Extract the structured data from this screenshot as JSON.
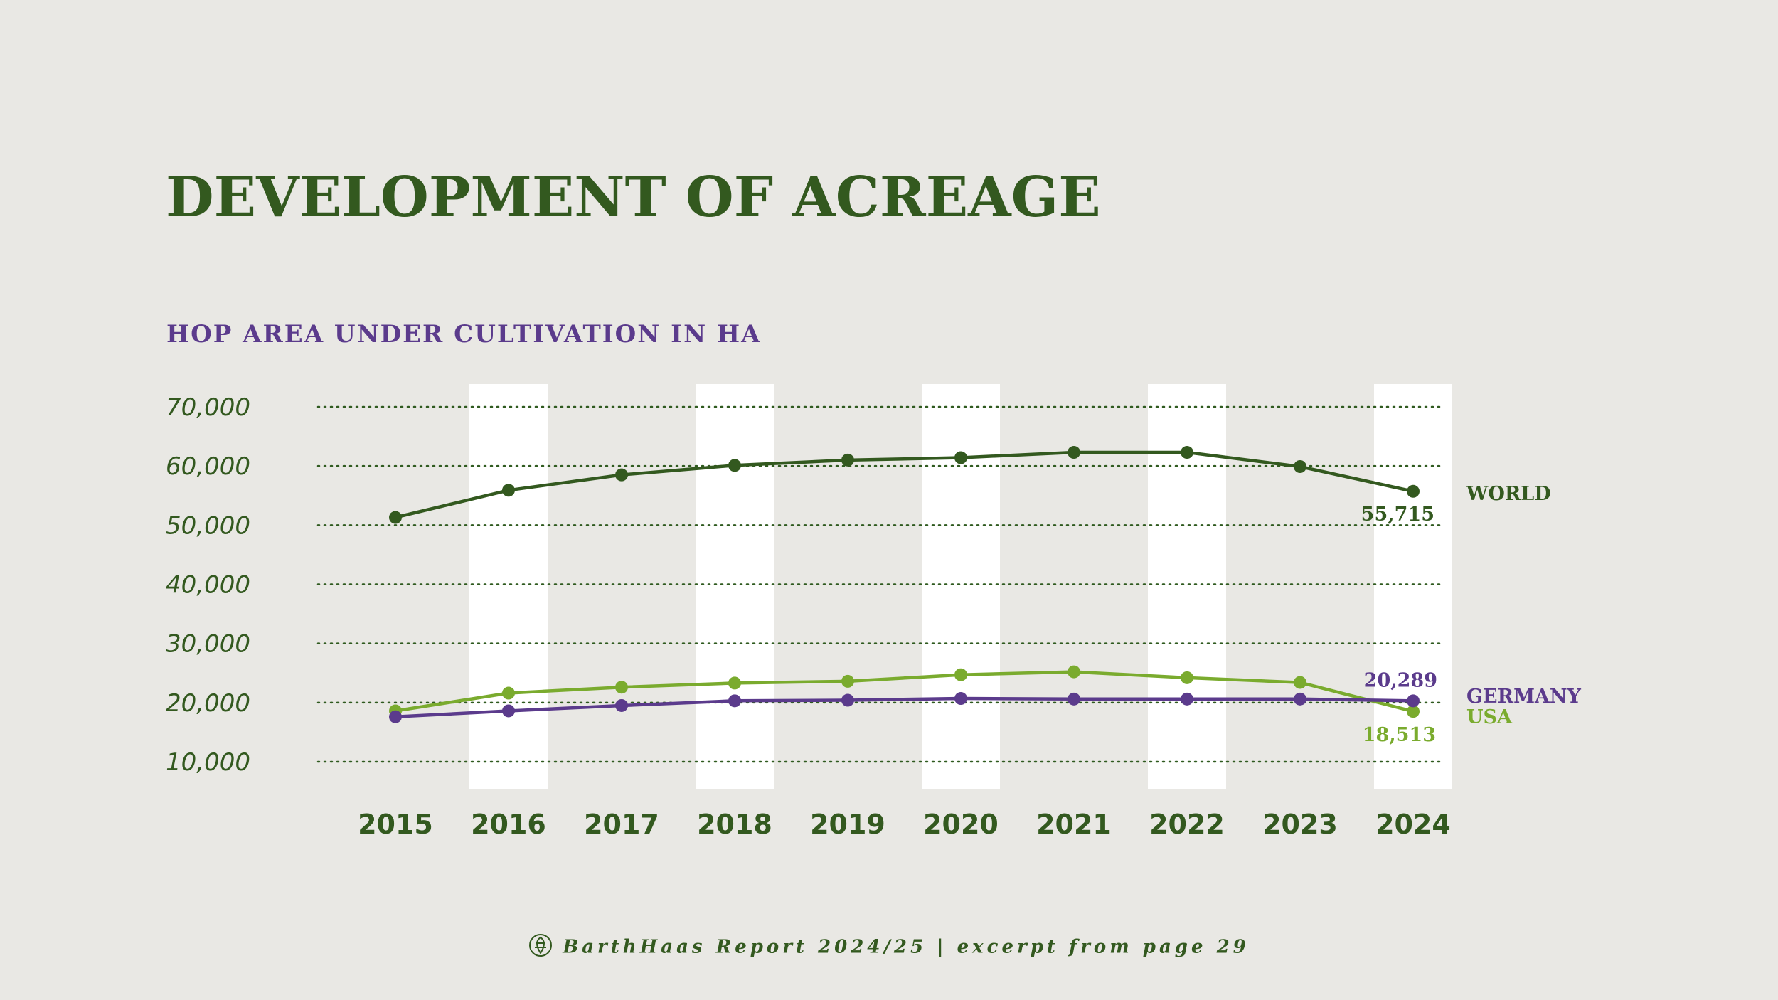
{
  "page": {
    "title": "DEVELOPMENT OF ACREAGE",
    "footer": "BarthHaas Report 2024/25 | excerpt from page 29",
    "footer_icon": "hop-cone-icon"
  },
  "colors": {
    "background": "#e9e8e4",
    "world": "#33591f",
    "germany": "#5b3b8c",
    "usa": "#7aab2e",
    "grid": "#2f5a1f",
    "band": "#ffffff"
  },
  "chart_data": {
    "type": "line",
    "title": "HOP AREA UNDER CULTIVATION IN HA",
    "xlabel": "",
    "ylabel": "",
    "categories": [
      "2015",
      "2016",
      "2017",
      "2018",
      "2019",
      "2020",
      "2021",
      "2022",
      "2023",
      "2024"
    ],
    "yticks": [
      10000,
      20000,
      30000,
      40000,
      50000,
      60000,
      70000
    ],
    "ytick_labels": [
      "10,000",
      "20,000",
      "30,000",
      "40,000",
      "50,000",
      "60,000",
      "70,000"
    ],
    "ylim": [
      10000,
      70000
    ],
    "grid": "horizontal dotted",
    "series": [
      {
        "key": "world",
        "name": "WORLD",
        "values": [
          51300,
          55900,
          58500,
          60100,
          61000,
          61400,
          62300,
          62300,
          59900,
          55715
        ],
        "end_label": "55,715"
      },
      {
        "key": "usa",
        "name": "USA",
        "values": [
          18600,
          21600,
          22600,
          23300,
          23600,
          24700,
          25200,
          24200,
          23400,
          18513
        ],
        "end_label": "18,513"
      },
      {
        "key": "germany",
        "name": "GERMANY",
        "values": [
          17600,
          18600,
          19500,
          20300,
          20400,
          20700,
          20600,
          20600,
          20600,
          20289
        ],
        "end_label": "20,289"
      }
    ]
  }
}
